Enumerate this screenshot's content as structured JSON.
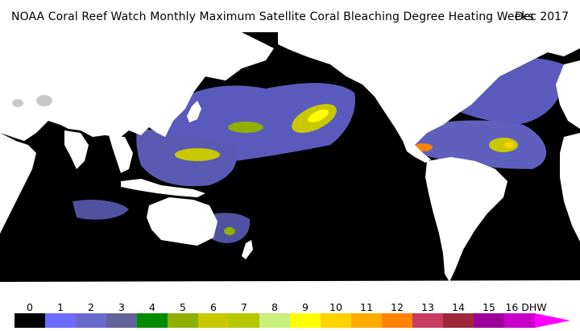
{
  "title": "NOAA Coral Reef Watch Monthly Maximum Satellite Coral Bleaching Degree Heating Weeks",
  "date": "Dec 2017",
  "legend": {
    "labels": [
      "0",
      "1",
      "2",
      "3",
      "4",
      "5",
      "6",
      "7",
      "8",
      "9",
      "10",
      "11",
      "12",
      "13",
      "14",
      "15",
      "16 DHW"
    ],
    "colors": [
      "#000000",
      "#6b6bff",
      "#6a6acd",
      "#64649b",
      "#008c00",
      "#8fae00",
      "#c8c800",
      "#b4c800",
      "#c8f07a",
      "#ffff00",
      "#ffd200",
      "#ffaa00",
      "#ff8200",
      "#c83c64",
      "#a0283c",
      "#9b009b",
      "#c800c8",
      "#ff00ff"
    ]
  }
}
